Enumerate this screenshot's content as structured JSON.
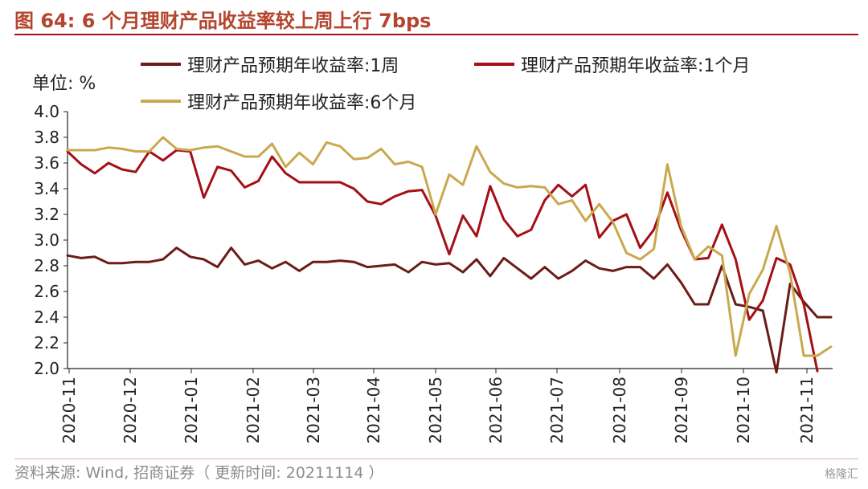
{
  "header": {
    "title": "图 64:  6 个月理财产品收益率较上周上行 7bps"
  },
  "unit_label": "单位:  %",
  "source": "资料来源:  Wind,  招商证券（ 更新时间:  20211114 ）",
  "watermark": "格隆汇",
  "colors": {
    "title": "#b4452e",
    "series_1w": "#6b1c18",
    "series_1m": "#a50f15",
    "series_6m": "#c9a94f"
  },
  "chart_data": {
    "type": "line",
    "title": "",
    "xlabel": "",
    "ylabel": "单位:  %",
    "ylim": [
      2.0,
      4.0
    ],
    "yticks": [
      "4.0",
      "3.8",
      "3.6",
      "3.4",
      "3.2",
      "3.0",
      "2.8",
      "2.6",
      "2.4",
      "2.2",
      "2.0"
    ],
    "x_tick_labels": [
      "2020-11",
      "2020-12",
      "2021-01",
      "2021-02",
      "2021-03",
      "2021-04",
      "2021-05",
      "2021-06",
      "2021-07",
      "2021-08",
      "2021-09",
      "2021-10",
      "2021-11"
    ],
    "legend_placement": "top",
    "grid": false,
    "series": [
      {
        "name": "理财产品预期年收益率:1周",
        "color": "#6b1c18",
        "values": [
          2.88,
          2.86,
          2.87,
          2.82,
          2.82,
          2.83,
          2.83,
          2.85,
          2.94,
          2.87,
          2.85,
          2.79,
          2.94,
          2.81,
          2.84,
          2.78,
          2.83,
          2.76,
          2.83,
          2.83,
          2.84,
          2.83,
          2.79,
          2.8,
          2.81,
          2.75,
          2.83,
          2.81,
          2.82,
          2.75,
          2.85,
          2.72,
          2.86,
          2.78,
          2.7,
          2.79,
          2.7,
          2.76,
          2.84,
          2.78,
          2.76,
          2.79,
          2.79,
          2.7,
          2.81,
          2.67,
          2.5,
          2.5,
          2.8,
          2.5,
          2.48,
          2.45,
          1.97,
          2.66,
          2.52,
          2.4,
          2.4
        ]
      },
      {
        "name": "理财产品预期年收益率:1个月",
        "color": "#a50f15",
        "values": [
          3.69,
          3.59,
          3.52,
          3.6,
          3.55,
          3.53,
          3.69,
          3.62,
          3.7,
          3.69,
          3.33,
          3.57,
          3.54,
          3.41,
          3.46,
          3.65,
          3.52,
          3.45,
          3.45,
          3.45,
          3.45,
          3.4,
          3.3,
          3.28,
          3.34,
          3.38,
          3.39,
          3.19,
          2.89,
          3.19,
          3.03,
          3.42,
          3.16,
          3.03,
          3.08,
          3.31,
          3.43,
          3.34,
          3.43,
          3.02,
          3.15,
          3.2,
          2.94,
          3.08,
          3.37,
          3.08,
          2.85,
          2.86,
          3.12,
          2.85,
          2.38,
          2.53,
          2.86,
          2.81,
          2.5,
          1.98
        ]
      },
      {
        "name": "理财产品预期年收益率:6个月",
        "color": "#c9a94f",
        "values": [
          3.7,
          3.7,
          3.7,
          3.72,
          3.71,
          3.69,
          3.69,
          3.8,
          3.71,
          3.7,
          3.72,
          3.73,
          3.69,
          3.65,
          3.65,
          3.75,
          3.57,
          3.68,
          3.59,
          3.76,
          3.73,
          3.63,
          3.64,
          3.71,
          3.59,
          3.61,
          3.57,
          3.2,
          3.51,
          3.43,
          3.73,
          3.53,
          3.44,
          3.41,
          3.42,
          3.41,
          3.28,
          3.31,
          3.15,
          3.28,
          3.14,
          2.9,
          2.85,
          2.93,
          3.59,
          3.11,
          2.85,
          2.95,
          2.88,
          2.1,
          2.58,
          2.77,
          3.11,
          2.74,
          2.1,
          2.1,
          2.17
        ]
      }
    ]
  }
}
